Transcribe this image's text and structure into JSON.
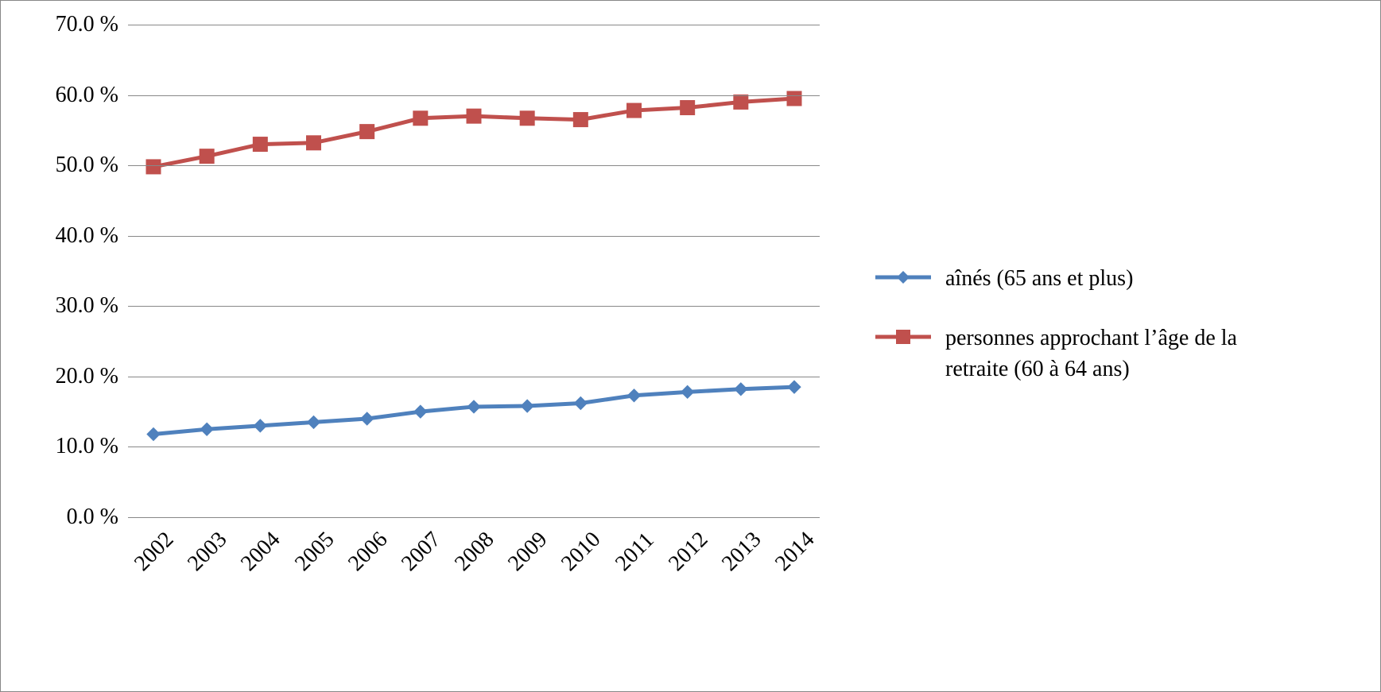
{
  "chart": {
    "type": "line",
    "background_color": "#ffffff",
    "border_color": "#888888",
    "grid_color": "#888888",
    "axis_color": "#888888",
    "text_color": "#000000",
    "font_family": "Times New Roman",
    "label_fontsize": 28,
    "ylim": [
      0,
      70
    ],
    "ytick_step": 10,
    "y_ticks": [
      "0.0 %",
      "10.0 %",
      "20.0 %",
      "30.0 %",
      "40.0 %",
      "50.0 %",
      "60.0 %",
      "70.0 %"
    ],
    "categories": [
      "2002",
      "2003",
      "2004",
      "2005",
      "2006",
      "2007",
      "2008",
      "2009",
      "2010",
      "2011",
      "2012",
      "2013",
      "2014"
    ],
    "series": [
      {
        "key": "aines",
        "label": "aînés (65 ans et plus)",
        "color": "#4f81bd",
        "marker": "diamond",
        "marker_size": 16,
        "line_width": 5,
        "values": [
          11.8,
          12.5,
          13.0,
          13.5,
          14.0,
          15.0,
          15.7,
          15.8,
          16.2,
          17.3,
          17.8,
          18.2,
          18.5
        ]
      },
      {
        "key": "approchant",
        "label": "personnes approchant l’âge de la retraite (60 à 64 ans)",
        "color": "#c0504d",
        "marker": "square",
        "marker_size": 18,
        "line_width": 5,
        "values": [
          49.8,
          51.3,
          53.0,
          53.2,
          54.8,
          56.7,
          57.0,
          56.7,
          56.5,
          57.8,
          58.2,
          59.0,
          59.5
        ]
      }
    ],
    "legend": {
      "position": "right",
      "fontsize": 28
    }
  }
}
